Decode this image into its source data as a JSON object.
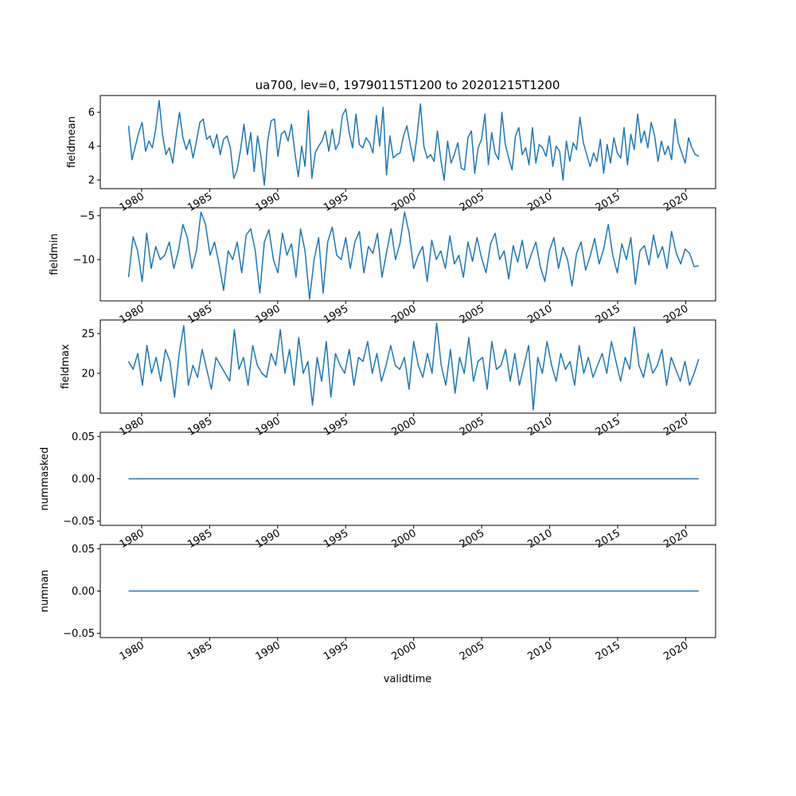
{
  "chart_data": {
    "type": "line",
    "title": "ua700, lev=0, 19790115T1200 to 20201215T1200",
    "xlabel": "validtime",
    "x_range": [
      1979.04,
      2020.96
    ],
    "xlim": [
      1976.96,
      2022.2
    ],
    "x_ticks": [
      1980,
      1985,
      1990,
      1995,
      2000,
      2005,
      2010,
      2015,
      2020
    ],
    "x_tick_labels": [
      "1980",
      "1985",
      "1990",
      "1995",
      "2000",
      "2005",
      "2010",
      "2015",
      "2020"
    ],
    "line_color": "#1f77b4",
    "panels": [
      {
        "ylabel": "fieldmean",
        "ylim": [
          1.49,
          6.99
        ],
        "y_ticks": [
          2,
          4,
          6
        ],
        "y_tick_labels": [
          "2",
          "4",
          "6"
        ],
        "values": [
          5.2,
          3.2,
          4.0,
          4.8,
          5.4,
          3.7,
          4.3,
          3.9,
          5.0,
          6.7,
          4.7,
          3.5,
          3.9,
          3.0,
          4.6,
          6.0,
          4.5,
          3.8,
          4.4,
          3.3,
          4.3,
          5.4,
          5.6,
          4.4,
          4.6,
          3.9,
          4.7,
          3.5,
          4.4,
          4.6,
          3.9,
          2.1,
          2.6,
          3.8,
          5.3,
          3.5,
          4.8,
          2.5,
          4.6,
          3.4,
          1.7,
          4.3,
          5.5,
          5.6,
          3.4,
          4.7,
          4.9,
          4.3,
          5.3,
          3.6,
          2.2,
          4.0,
          2.8,
          6.1,
          2.1,
          3.6,
          4.0,
          4.3,
          4.9,
          3.7,
          5.0,
          3.8,
          4.2,
          5.8,
          6.2,
          4.8,
          3.9,
          5.9,
          4.1,
          3.9,
          4.5,
          4.2,
          3.6,
          5.8,
          4.0,
          6.3,
          2.3,
          4.6,
          3.3,
          3.5,
          3.6,
          4.6,
          5.2,
          4.1,
          3.1,
          4.6,
          6.5,
          4.0,
          3.3,
          3.5,
          3.1,
          4.9,
          3.2,
          2.0,
          4.3,
          3.0,
          3.5,
          4.2,
          2.7,
          2.6,
          4.5,
          4.9,
          2.4,
          3.9,
          4.4,
          5.9,
          2.9,
          4.8,
          3.6,
          3.2,
          6.0,
          4.1,
          3.3,
          2.6,
          4.6,
          5.1,
          3.5,
          3.9,
          2.9,
          5.1,
          3.0,
          4.1,
          3.9,
          3.4,
          4.6,
          2.8,
          4.0,
          3.7,
          2.0,
          4.3,
          3.1,
          4.2,
          3.8,
          5.7,
          4.2,
          3.5,
          2.8,
          3.6,
          3.1,
          4.4,
          2.4,
          4.1,
          3.0,
          4.5,
          3.6,
          3.3,
          5.1,
          2.9,
          4.7,
          3.8,
          5.9,
          4.2,
          4.9,
          3.9,
          5.4,
          4.6,
          3.1,
          4.3,
          3.5,
          4.0,
          3.2,
          5.6,
          4.2,
          3.6,
          3.0,
          4.5,
          3.9,
          3.5,
          3.4
        ]
      },
      {
        "ylabel": "fieldmin",
        "ylim": [
          -14.7,
          -4.1
        ],
        "y_ticks": [
          -10,
          -5
        ],
        "y_tick_labels": [
          "−10",
          "−5"
        ],
        "values": [
          -12,
          -7.4,
          -9,
          -12.5,
          -7,
          -11,
          -8.5,
          -10,
          -9.5,
          -8,
          -11,
          -9,
          -6,
          -7.5,
          -11,
          -9,
          -4.6,
          -6,
          -9.5,
          -8,
          -10.5,
          -13.5,
          -9,
          -10,
          -8,
          -11.5,
          -7.2,
          -6.5,
          -9,
          -13.8,
          -8,
          -6.6,
          -10,
          -11.5,
          -7,
          -9.5,
          -8.2,
          -12,
          -6.5,
          -9,
          -14.5,
          -10,
          -7.5,
          -13.8,
          -8,
          -6.3,
          -9.5,
          -10,
          -7.5,
          -11,
          -8,
          -6.8,
          -11.5,
          -8.5,
          -9.3,
          -7,
          -12,
          -9.2,
          -6.5,
          -10,
          -8.1,
          -4.6,
          -7,
          -11,
          -9.5,
          -8.5,
          -12.5,
          -7.8,
          -10,
          -9,
          -11,
          -7.3,
          -10.5,
          -9.5,
          -12,
          -8,
          -10.2,
          -7.5,
          -9.8,
          -11.5,
          -8.2,
          -7,
          -10,
          -9,
          -12.2,
          -8.4,
          -10.3,
          -7.8,
          -11,
          -9.4,
          -8,
          -10.8,
          -12.5,
          -9,
          -7.5,
          -11,
          -8.6,
          -10,
          -13,
          -9.3,
          -8,
          -11.2,
          -9.6,
          -7.6,
          -10.5,
          -8.8,
          -6,
          -9.5,
          -11.5,
          -8.2,
          -10,
          -7.5,
          -12.8,
          -9,
          -8.4,
          -10.6,
          -7.2,
          -9.8,
          -8.5,
          -11,
          -6.8,
          -9.2,
          -10.5,
          -8.8,
          -9.3,
          -10.8,
          -10.7
        ]
      },
      {
        "ylabel": "fieldmax",
        "ylim": [
          15.0,
          26.7
        ],
        "y_ticks": [
          20,
          25
        ],
        "y_tick_labels": [
          "20",
          "25"
        ],
        "values": [
          21.5,
          20.5,
          22.5,
          18.5,
          23.5,
          20,
          22,
          19,
          23,
          21.5,
          17,
          22.5,
          26,
          18.5,
          21,
          19.5,
          23,
          20.5,
          18,
          22,
          21,
          20,
          19,
          25.5,
          20.5,
          22,
          18.5,
          23.5,
          21,
          20,
          19.5,
          22.5,
          21,
          25.5,
          20,
          23,
          18.5,
          24.5,
          20,
          21.5,
          16,
          22,
          19,
          24,
          17,
          22.5,
          21,
          20,
          23,
          18.5,
          22,
          21.5,
          24,
          20,
          22.5,
          19,
          21,
          23.5,
          21,
          20.5,
          22,
          18,
          24,
          21,
          19.5,
          22.5,
          20,
          26.3,
          21,
          18.5,
          23,
          17.5,
          22,
          20,
          24.5,
          19,
          21.5,
          22,
          18,
          24,
          20.5,
          21,
          23,
          19,
          22.5,
          18.5,
          21,
          23.5,
          15.4,
          22,
          20,
          24,
          21,
          19,
          22.5,
          20.5,
          21.5,
          18.5,
          23.5,
          20,
          22,
          19.5,
          21,
          22.5,
          20,
          24,
          21.5,
          19,
          22,
          20.5,
          25.8,
          21,
          19.5,
          22.5,
          20,
          21,
          23,
          18.5,
          22,
          20.5,
          19,
          21.5,
          18.5,
          20,
          21.8
        ]
      },
      {
        "ylabel": "nummasked",
        "ylim": [
          -0.055,
          0.055
        ],
        "y_ticks": [
          -0.05,
          0,
          0.05
        ],
        "y_tick_labels": [
          "−0.05",
          "0.00",
          "0.05"
        ],
        "values": [
          0,
          0
        ]
      },
      {
        "ylabel": "numnan",
        "ylim": [
          -0.055,
          0.055
        ],
        "y_ticks": [
          -0.05,
          0,
          0.05
        ],
        "y_tick_labels": [
          "−0.05",
          "0.00",
          "0.05"
        ],
        "values": [
          0,
          0
        ]
      }
    ]
  }
}
